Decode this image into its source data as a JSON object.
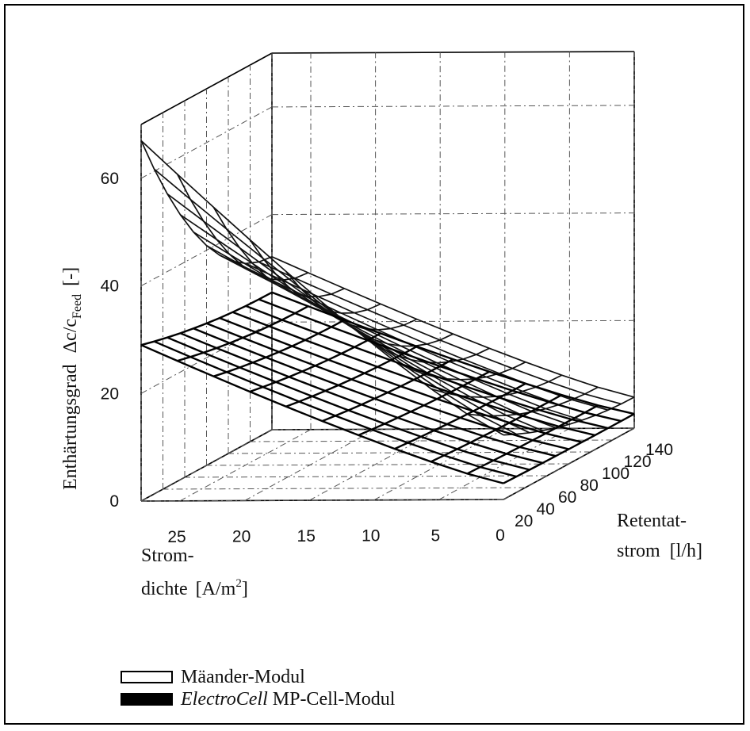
{
  "chart_data": {
    "type": "surface",
    "axes": {
      "z": {
        "label_main": "Enthärtungsgrad",
        "label_symbol": "Δc/c",
        "label_sub": "Feed",
        "label_unit": "[-]",
        "ticks": [
          "0",
          "20",
          "40",
          "60"
        ],
        "range": [
          0,
          70
        ]
      },
      "x": {
        "label_line1": "Strom-",
        "label_line2": "dichte",
        "label_unit_base": "[A/m",
        "label_unit_sup": "2",
        "label_unit_end": "]",
        "ticks": [
          "0",
          "5",
          "10",
          "15",
          "20",
          "25"
        ],
        "range": [
          0,
          28
        ]
      },
      "y": {
        "label_line1": "Retentat-",
        "label_line2": "strom",
        "label_unit": "[l/h]",
        "ticks": [
          "20",
          "40",
          "60",
          "80",
          "100",
          "120",
          "140"
        ],
        "range": [
          20,
          140
        ]
      }
    },
    "grid": true,
    "x_grid": [
      0,
      2.8,
      5.6,
      8.4,
      11.2,
      14,
      16.8,
      19.6,
      22.4,
      25.2,
      28
    ],
    "y_grid": [
      20,
      32,
      44,
      56,
      68,
      80,
      92,
      104,
      116,
      128,
      140
    ],
    "series": [
      {
        "name": "Mäander-Modul",
        "z_at_corners": {
          "i0_y20": 12,
          "i28_y20": 67,
          "i0_y140": 4,
          "i28_y140": 32
        },
        "z_profile_current_start": 12,
        "z_profile_current_end": 67,
        "z_flow_factor_end": 0.48
      },
      {
        "name": "ElectroCell MP-Cell-Modul",
        "z_at_corners": {
          "i0_y20": 3,
          "i28_y20": 29,
          "i0_y140": 2,
          "i28_y140": 26
        },
        "z_profile_current_start": 3,
        "z_profile_current_end": 29,
        "z_flow_factor_end": 0.88
      }
    ],
    "legend": {
      "placement": "bottom-left",
      "entries": [
        {
          "text": "Mäander-Modul",
          "swatch": "white"
        },
        {
          "italic": "ElectroCell",
          "text": " MP-Cell-Modul",
          "swatch": "black"
        }
      ]
    }
  }
}
